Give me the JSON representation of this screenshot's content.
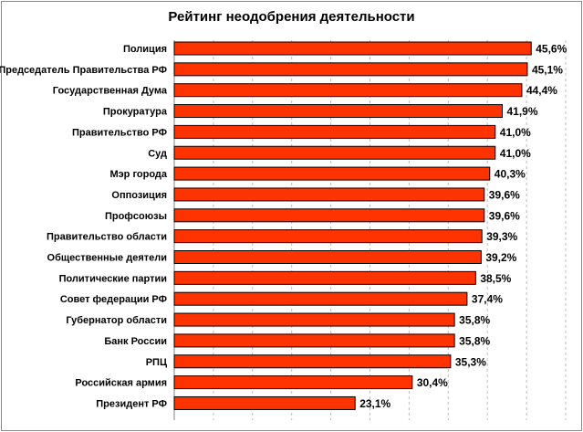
{
  "chart_data": {
    "type": "bar",
    "orientation": "horizontal",
    "title": "Рейтинг неодобрения деятельности",
    "categories": [
      "Полиция",
      "Председатель Правительства РФ",
      "Государственная Дума",
      "Прокуратура",
      "Правительство РФ",
      "Суд",
      "Мэр города",
      "Оппозиция",
      "Профсоюзы",
      "Правительство области",
      "Общественные деятели",
      "Политические партии",
      "Совет федерации РФ",
      "Губернатор области",
      "Банк России",
      "РПЦ",
      "Российская армия",
      "Президент РФ"
    ],
    "values": [
      45.6,
      45.1,
      44.4,
      41.9,
      41.0,
      41.0,
      40.3,
      39.6,
      39.6,
      39.3,
      39.2,
      38.5,
      37.4,
      35.8,
      35.8,
      35.3,
      30.4,
      23.1
    ],
    "value_labels": [
      "45,6%",
      "45,1%",
      "44,4%",
      "41,9%",
      "41,0%",
      "41,0%",
      "40,3%",
      "39,6%",
      "39,6%",
      "39,3%",
      "39,2%",
      "38,5%",
      "37,4%",
      "35,8%",
      "35,8%",
      "35,3%",
      "30,4%",
      "23,1%"
    ],
    "xlim": [
      0,
      50
    ],
    "grid": "vertical dashed",
    "legend": "none",
    "bar_color": "#ff3300",
    "bar_border": "#000000"
  }
}
